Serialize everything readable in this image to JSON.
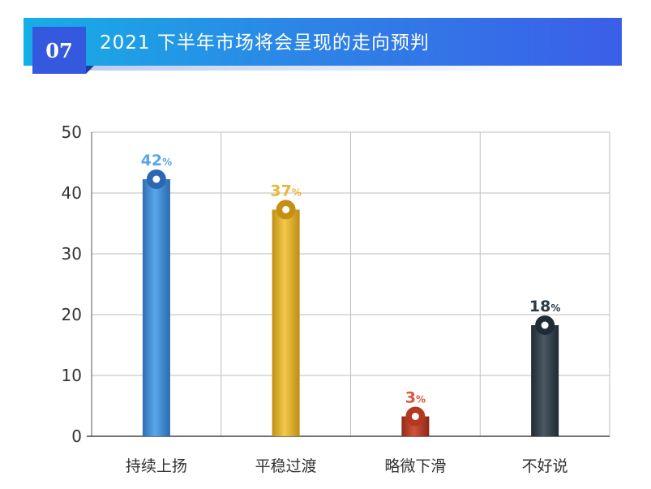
{
  "header": {
    "number": "07",
    "title": "2021 下半年市场将会呈现的走向预判"
  },
  "chart_data": {
    "type": "bar",
    "categories": [
      "持续上扬",
      "平稳过渡",
      "略微下滑",
      "不好说"
    ],
    "values": [
      42,
      37,
      3,
      18
    ],
    "value_suffix": "%",
    "ylim": [
      0,
      50
    ],
    "yticks": [
      0,
      10,
      20,
      30,
      40,
      50
    ],
    "grid": true,
    "bar_gradients": [
      [
        "#2f6eb3",
        "#5aa6ea",
        "#2a6ab0"
      ],
      [
        "#c08f16",
        "#f1c94a",
        "#bf8c12"
      ],
      [
        "#8f2c1a",
        "#d2533a",
        "#8a2816"
      ],
      [
        "#1f2b35",
        "#4a5864",
        "#1e2a34"
      ]
    ],
    "label_colors": [
      "#5aa6ea",
      "#e8b73a",
      "#d9553f",
      "#2b3a47"
    ],
    "knob_colors": [
      "#2b67b2",
      "#c58f14",
      "#b2381f",
      "#1f2b35"
    ]
  }
}
